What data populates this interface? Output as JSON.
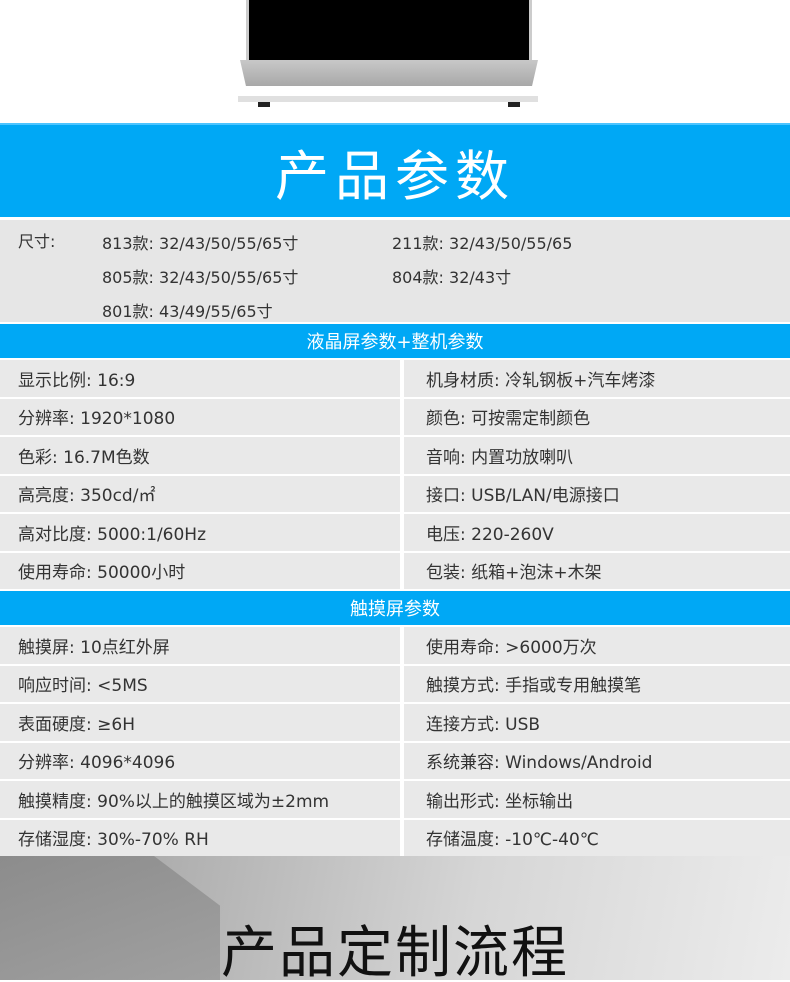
{
  "header": {
    "title": "产品参数"
  },
  "sizes": {
    "label": "尺寸:",
    "items": [
      {
        "model": "813款:",
        "value": "32/43/50/55/65寸"
      },
      {
        "model": "211款:",
        "value": "32/43/50/55/65"
      },
      {
        "model": "805款:",
        "value": "32/43/50/55/65寸"
      },
      {
        "model": "804款:",
        "value": "32/43寸"
      },
      {
        "model": "801款:",
        "value": "43/49/55/65寸"
      }
    ]
  },
  "lcd": {
    "title": "液晶屏参数+整机参数",
    "rows": [
      [
        "显示比例: 16:9",
        "机身材质: 冷轧钢板+汽车烤漆"
      ],
      [
        "分辨率: 1920*1080",
        "颜色: 可按需定制颜色"
      ],
      [
        "色彩: 16.7M色数",
        "音响: 内置功放喇叭"
      ],
      [
        "高亮度: 350cd/㎡",
        "接口: USB/LAN/电源接口"
      ],
      [
        "高对比度: 5000:1/60Hz",
        "电压: 220-260V"
      ],
      [
        "使用寿命: 50000小时",
        "包装: 纸箱+泡沫+木架"
      ]
    ]
  },
  "touch": {
    "title": "触摸屏参数",
    "rows": [
      [
        "触摸屏: 10点红外屏",
        "使用寿命: >6000万次"
      ],
      [
        "响应时间: <5MS",
        "触摸方式: 手指或专用触摸笔"
      ],
      [
        "表面硬度: ≥6H",
        "连接方式: USB"
      ],
      [
        "分辨率: 4096*4096",
        "系统兼容: Windows/Android"
      ],
      [
        "触摸精度: 90%以上的触摸区域为±2mm",
        "输出形式: 坐标输出"
      ],
      [
        "存储湿度: 30%-70% RH",
        "存储温度: -10℃-40℃"
      ]
    ]
  },
  "footer": {
    "title": "产品定制流程"
  },
  "colors": {
    "accent": "#00a8f5",
    "row_bg": "#e9e9e9"
  }
}
